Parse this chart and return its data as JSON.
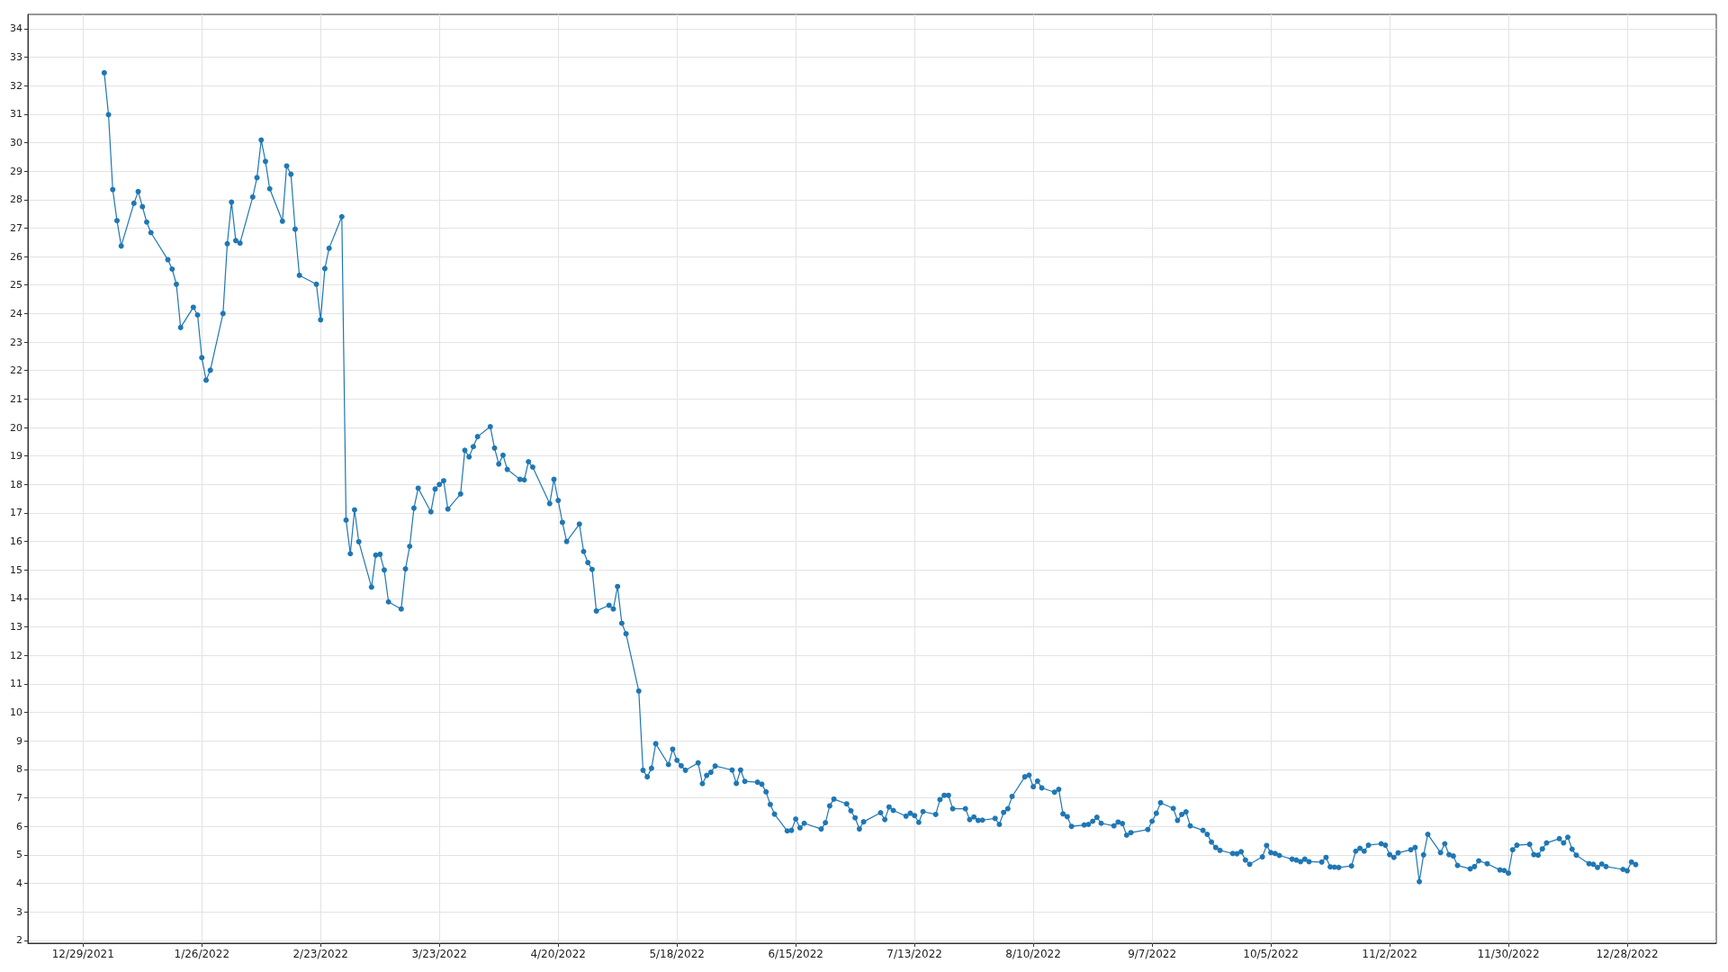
{
  "chart_data": {
    "type": "line",
    "color": "#1f77b4",
    "marker": "circle",
    "line_style": "solid",
    "grid": true,
    "xlim": [
      "2021-12-16",
      "2023-01-18"
    ],
    "ylim": [
      1.9,
      34.5
    ],
    "xticks": [
      {
        "value": "2021-12-29",
        "label": "12/29/2021"
      },
      {
        "value": "2022-01-26",
        "label": "1/26/2022"
      },
      {
        "value": "2022-02-23",
        "label": "2/23/2022"
      },
      {
        "value": "2022-03-23",
        "label": "3/23/2022"
      },
      {
        "value": "2022-04-20",
        "label": "4/20/2022"
      },
      {
        "value": "2022-05-18",
        "label": "5/18/2022"
      },
      {
        "value": "2022-06-15",
        "label": "6/15/2022"
      },
      {
        "value": "2022-07-13",
        "label": "7/13/2022"
      },
      {
        "value": "2022-08-10",
        "label": "8/10/2022"
      },
      {
        "value": "2022-09-07",
        "label": "9/7/2022"
      },
      {
        "value": "2022-10-05",
        "label": "10/5/2022"
      },
      {
        "value": "2022-11-02",
        "label": "11/2/2022"
      },
      {
        "value": "2022-11-30",
        "label": "11/30/2022"
      },
      {
        "value": "2022-12-28",
        "label": "12/28/2022"
      }
    ],
    "yticks": [
      2,
      3,
      4,
      5,
      6,
      7,
      8,
      9,
      10,
      11,
      12,
      13,
      14,
      15,
      16,
      17,
      18,
      19,
      20,
      21,
      22,
      23,
      24,
      25,
      26,
      27,
      28,
      29,
      30,
      31,
      32,
      33,
      34
    ],
    "x": [
      "2022-01-03",
      "2022-01-04",
      "2022-01-05",
      "2022-01-06",
      "2022-01-07",
      "2022-01-10",
      "2022-01-11",
      "2022-01-12",
      "2022-01-13",
      "2022-01-14",
      "2022-01-18",
      "2022-01-19",
      "2022-01-20",
      "2022-01-21",
      "2022-01-24",
      "2022-01-25",
      "2022-01-26",
      "2022-01-27",
      "2022-01-28",
      "2022-01-31",
      "2022-02-01",
      "2022-02-02",
      "2022-02-03",
      "2022-02-04",
      "2022-02-07",
      "2022-02-08",
      "2022-02-09",
      "2022-02-10",
      "2022-02-11",
      "2022-02-14",
      "2022-02-15",
      "2022-02-16",
      "2022-02-17",
      "2022-02-18",
      "2022-02-22",
      "2022-02-23",
      "2022-02-24",
      "2022-02-25",
      "2022-02-28",
      "2022-03-01",
      "2022-03-02",
      "2022-03-03",
      "2022-03-04",
      "2022-03-07",
      "2022-03-08",
      "2022-03-09",
      "2022-03-10",
      "2022-03-11",
      "2022-03-14",
      "2022-03-15",
      "2022-03-16",
      "2022-03-17",
      "2022-03-18",
      "2022-03-21",
      "2022-03-22",
      "2022-03-23",
      "2022-03-24",
      "2022-03-25",
      "2022-03-28",
      "2022-03-29",
      "2022-03-30",
      "2022-03-31",
      "2022-04-01",
      "2022-04-04",
      "2022-04-05",
      "2022-04-06",
      "2022-04-07",
      "2022-04-08",
      "2022-04-11",
      "2022-04-12",
      "2022-04-13",
      "2022-04-14",
      "2022-04-18",
      "2022-04-19",
      "2022-04-20",
      "2022-04-21",
      "2022-04-22",
      "2022-04-25",
      "2022-04-26",
      "2022-04-27",
      "2022-04-28",
      "2022-04-29",
      "2022-05-02",
      "2022-05-03",
      "2022-05-04",
      "2022-05-05",
      "2022-05-06",
      "2022-05-09",
      "2022-05-10",
      "2022-05-11",
      "2022-05-12",
      "2022-05-13",
      "2022-05-16",
      "2022-05-17",
      "2022-05-18",
      "2022-05-19",
      "2022-05-20",
      "2022-05-23",
      "2022-05-24",
      "2022-05-25",
      "2022-05-26",
      "2022-05-27",
      "2022-05-31",
      "2022-06-01",
      "2022-06-02",
      "2022-06-03",
      "2022-06-06",
      "2022-06-07",
      "2022-06-08",
      "2022-06-09",
      "2022-06-10",
      "2022-06-13",
      "2022-06-14",
      "2022-06-15",
      "2022-06-16",
      "2022-06-17",
      "2022-06-21",
      "2022-06-22",
      "2022-06-23",
      "2022-06-24",
      "2022-06-27",
      "2022-06-28",
      "2022-06-29",
      "2022-06-30",
      "2022-07-01",
      "2022-07-05",
      "2022-07-06",
      "2022-07-07",
      "2022-07-08",
      "2022-07-11",
      "2022-07-12",
      "2022-07-13",
      "2022-07-14",
      "2022-07-15",
      "2022-07-18",
      "2022-07-19",
      "2022-07-20",
      "2022-07-21",
      "2022-07-22",
      "2022-07-25",
      "2022-07-26",
      "2022-07-27",
      "2022-07-28",
      "2022-07-29",
      "2022-08-01",
      "2022-08-02",
      "2022-08-03",
      "2022-08-04",
      "2022-08-05",
      "2022-08-08",
      "2022-08-09",
      "2022-08-10",
      "2022-08-11",
      "2022-08-12",
      "2022-08-15",
      "2022-08-16",
      "2022-08-17",
      "2022-08-18",
      "2022-08-19",
      "2022-08-22",
      "2022-08-23",
      "2022-08-24",
      "2022-08-25",
      "2022-08-26",
      "2022-08-29",
      "2022-08-30",
      "2022-08-31",
      "2022-09-01",
      "2022-09-02",
      "2022-09-06",
      "2022-09-07",
      "2022-09-08",
      "2022-09-09",
      "2022-09-12",
      "2022-09-13",
      "2022-09-14",
      "2022-09-15",
      "2022-09-16",
      "2022-09-19",
      "2022-09-20",
      "2022-09-21",
      "2022-09-22",
      "2022-09-23",
      "2022-09-26",
      "2022-09-27",
      "2022-09-28",
      "2022-09-29",
      "2022-09-30",
      "2022-10-03",
      "2022-10-04",
      "2022-10-05",
      "2022-10-06",
      "2022-10-07",
      "2022-10-10",
      "2022-10-11",
      "2022-10-12",
      "2022-10-13",
      "2022-10-14",
      "2022-10-17",
      "2022-10-18",
      "2022-10-19",
      "2022-10-20",
      "2022-10-21",
      "2022-10-24",
      "2022-10-25",
      "2022-10-26",
      "2022-10-27",
      "2022-10-28",
      "2022-10-31",
      "2022-11-01",
      "2022-11-02",
      "2022-11-03",
      "2022-11-04",
      "2022-11-07",
      "2022-11-08",
      "2022-11-09",
      "2022-11-10",
      "2022-11-11",
      "2022-11-14",
      "2022-11-15",
      "2022-11-16",
      "2022-11-17",
      "2022-11-18",
      "2022-11-21",
      "2022-11-22",
      "2022-11-23",
      "2022-11-25",
      "2022-11-28",
      "2022-11-29",
      "2022-11-30",
      "2022-12-01",
      "2022-12-02",
      "2022-12-05",
      "2022-12-06",
      "2022-12-07",
      "2022-12-08",
      "2022-12-09",
      "2022-12-12",
      "2022-12-13",
      "2022-12-14",
      "2022-12-15",
      "2022-12-16",
      "2022-12-19",
      "2022-12-20",
      "2022-12-21",
      "2022-12-22",
      "2022-12-23",
      "2022-12-27",
      "2022-12-28",
      "2022-12-29",
      "2022-12-30"
    ],
    "values": [
      32.45,
      30.98,
      28.35,
      27.26,
      26.37,
      27.87,
      28.28,
      27.75,
      27.21,
      26.84,
      25.89,
      25.56,
      25.03,
      23.51,
      24.22,
      23.95,
      22.45,
      21.66,
      22.01,
      24.0,
      26.45,
      27.91,
      26.56,
      26.47,
      28.09,
      28.77,
      30.09,
      29.34,
      28.38,
      27.24,
      29.18,
      28.89,
      26.96,
      25.34,
      25.03,
      23.78,
      25.58,
      26.29,
      27.4,
      16.75,
      15.57,
      17.11,
      15.99,
      14.4,
      15.52,
      15.55,
      15.0,
      13.88,
      13.63,
      15.04,
      15.83,
      17.17,
      17.87,
      17.04,
      17.84,
      18.0,
      18.13,
      17.14,
      17.67,
      19.2,
      18.97,
      19.33,
      19.68,
      20.03,
      19.28,
      18.72,
      19.03,
      18.53,
      18.18,
      18.16,
      18.8,
      18.61,
      17.33,
      18.18,
      17.44,
      16.67,
      16.0,
      16.61,
      15.65,
      15.26,
      15.02,
      13.56,
      13.76,
      13.63,
      14.42,
      13.13,
      12.76,
      10.75,
      7.97,
      7.74,
      8.04,
      8.9,
      8.17,
      8.71,
      8.32,
      8.13,
      7.97,
      8.23,
      7.5,
      7.79,
      7.9,
      8.12,
      7.98,
      7.51,
      7.98,
      7.58,
      7.55,
      7.48,
      7.21,
      6.77,
      6.43,
      5.84,
      5.86,
      6.26,
      5.95,
      6.11,
      5.91,
      6.13,
      6.72,
      6.96,
      6.79,
      6.55,
      6.3,
      5.91,
      6.16,
      6.48,
      6.24,
      6.68,
      6.56,
      6.36,
      6.46,
      6.38,
      6.14,
      6.52,
      6.42,
      6.94,
      7.09,
      7.09,
      6.62,
      6.62,
      6.24,
      6.33,
      6.21,
      6.22,
      6.28,
      6.07,
      6.49,
      6.62,
      7.05,
      7.74,
      7.8,
      7.39,
      7.59,
      7.35,
      7.2,
      7.3,
      6.44,
      6.34,
      6.0,
      6.05,
      6.07,
      6.18,
      6.32,
      6.11,
      6.02,
      6.15,
      6.1,
      5.69,
      5.78,
      5.89,
      6.18,
      6.46,
      6.83,
      6.63,
      6.21,
      6.42,
      6.51,
      6.02,
      5.86,
      5.72,
      5.45,
      5.26,
      5.16,
      5.05,
      5.04,
      5.11,
      4.82,
      4.67,
      4.93,
      5.33,
      5.08,
      5.05,
      4.98,
      4.85,
      4.82,
      4.76,
      4.85,
      4.76,
      4.75,
      4.91,
      4.58,
      4.57,
      4.56,
      4.61,
      5.13,
      5.23,
      5.13,
      5.34,
      5.39,
      5.34,
      5.01,
      4.91,
      5.07,
      5.18,
      5.26,
      4.06,
      5.0,
      5.72,
      5.08,
      5.39,
      5.01,
      4.96,
      4.63,
      4.51,
      4.59,
      4.79,
      4.69,
      4.47,
      4.45,
      4.36,
      5.18,
      5.34,
      5.37,
      5.01,
      4.99,
      5.21,
      5.42,
      5.57,
      5.42,
      5.62,
      5.2,
      4.99,
      4.69,
      4.67,
      4.56,
      4.68,
      4.59,
      4.49,
      4.44,
      4.75,
      4.66
    ]
  }
}
